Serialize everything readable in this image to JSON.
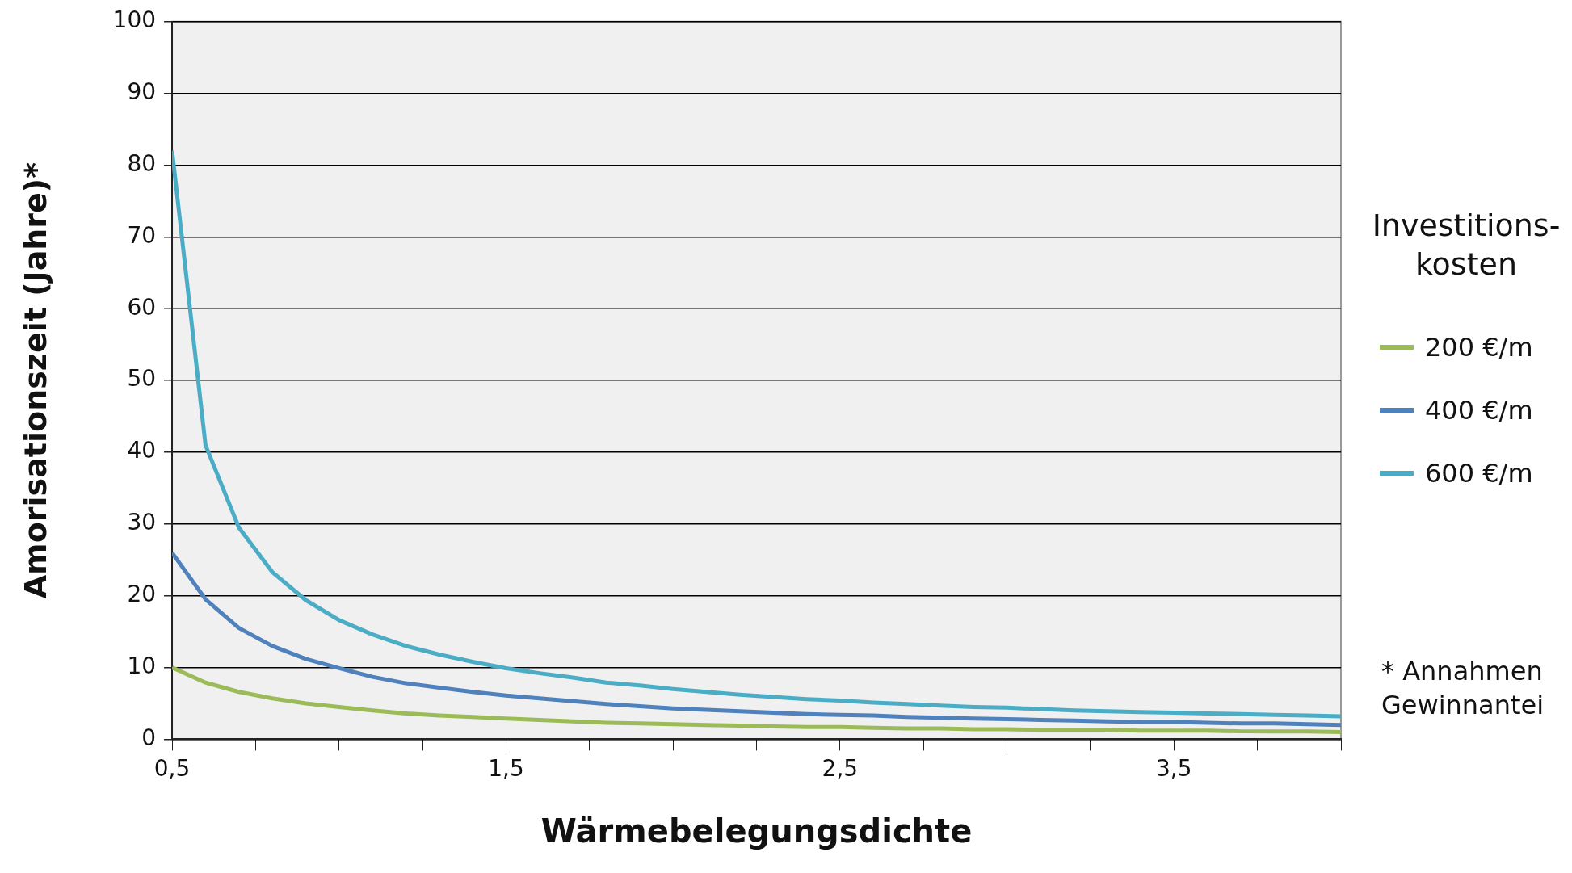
{
  "chart_data": {
    "type": "line",
    "xlabel": "Wärmebelegungsdichte",
    "ylabel": "Amorisationszeit (Jahre)*",
    "legend_title": "Investitions- kosten",
    "annotations": [
      "* Annahmen Gewinnantei"
    ],
    "x": [
      0.5,
      0.6,
      0.7,
      0.8,
      0.9,
      1.0,
      1.1,
      1.2,
      1.3,
      1.4,
      1.5,
      1.6,
      1.7,
      1.8,
      1.9,
      2.0,
      2.1,
      2.2,
      2.3,
      2.4,
      2.5,
      2.6,
      2.7,
      2.8,
      2.9,
      3.0,
      3.1,
      3.2,
      3.3,
      3.4,
      3.5,
      3.6,
      3.7,
      3.8,
      3.9,
      4.0
    ],
    "series": [
      {
        "name": "200 €/m",
        "color": "#9bbb59",
        "values": [
          10,
          7.9,
          6.6,
          5.7,
          5.0,
          4.5,
          4.0,
          3.6,
          3.3,
          3.1,
          2.9,
          2.7,
          2.5,
          2.3,
          2.2,
          2.1,
          2.0,
          1.9,
          1.8,
          1.7,
          1.7,
          1.6,
          1.5,
          1.5,
          1.4,
          1.4,
          1.3,
          1.3,
          1.3,
          1.2,
          1.2,
          1.2,
          1.1,
          1.1,
          1.1,
          1.0
        ]
      },
      {
        "name": "400 €/m",
        "color": "#4f81bd",
        "values": [
          26,
          19.5,
          15.5,
          13,
          11.2,
          9.9,
          8.7,
          7.8,
          7.2,
          6.6,
          6.1,
          5.7,
          5.3,
          4.9,
          4.6,
          4.3,
          4.1,
          3.9,
          3.7,
          3.5,
          3.4,
          3.3,
          3.1,
          3.0,
          2.9,
          2.8,
          2.7,
          2.6,
          2.5,
          2.4,
          2.4,
          2.3,
          2.2,
          2.2,
          2.1,
          2.0
        ]
      },
      {
        "name": "600 €/m",
        "color": "#4bacc6",
        "values": [
          82,
          41,
          29.5,
          23.3,
          19.4,
          16.6,
          14.6,
          13,
          11.8,
          10.8,
          9.9,
          9.2,
          8.6,
          7.9,
          7.5,
          7.0,
          6.6,
          6.2,
          5.9,
          5.6,
          5.4,
          5.1,
          4.9,
          4.7,
          4.5,
          4.4,
          4.2,
          4.0,
          3.9,
          3.8,
          3.7,
          3.6,
          3.5,
          3.4,
          3.3,
          3.2
        ]
      }
    ],
    "xlim": [
      0.5,
      4.0
    ],
    "xticks": [
      {
        "value": 0.5,
        "label": "0,5"
      },
      {
        "value": 0.75,
        "label": null
      },
      {
        "value": 1.0,
        "label": null
      },
      {
        "value": 1.25,
        "label": null
      },
      {
        "value": 1.5,
        "label": "1,5"
      },
      {
        "value": 1.75,
        "label": null
      },
      {
        "value": 2.0,
        "label": null
      },
      {
        "value": 2.25,
        "label": null
      },
      {
        "value": 2.5,
        "label": "2,5"
      },
      {
        "value": 2.75,
        "label": null
      },
      {
        "value": 3.0,
        "label": null
      },
      {
        "value": 3.25,
        "label": null
      },
      {
        "value": 3.5,
        "label": "3,5"
      },
      {
        "value": 3.75,
        "label": null
      },
      {
        "value": 4.0,
        "label": null
      }
    ],
    "ylim": [
      0,
      100
    ],
    "yticks": [
      0,
      10,
      20,
      30,
      40,
      50,
      60,
      70,
      80,
      90,
      100
    ],
    "grid": "y",
    "legend": "right",
    "marker": "none",
    "line_style": "solid"
  }
}
